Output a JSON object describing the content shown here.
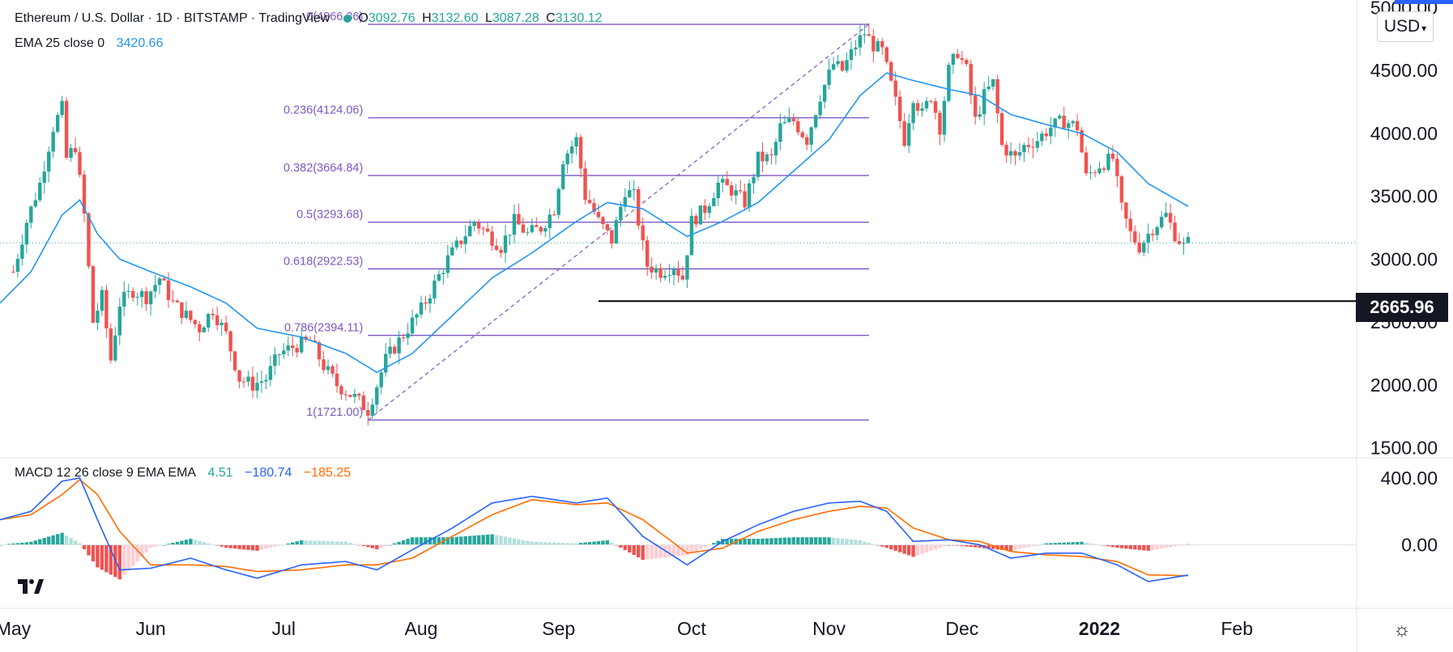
{
  "header": {
    "symbol_title": "Ethereum / U.S. Dollar · 1D · BITSTAMP · TradingView",
    "ohlc": {
      "o_label": "O",
      "o": "3092.76",
      "h_label": "H",
      "h": "3132.60",
      "l_label": "L",
      "l": "3087.28",
      "c_label": "C",
      "c": "3130.12"
    },
    "ema_label": "EMA 25 close 0",
    "ema_value": "3420.66",
    "macd_label": "MACD 12 26 close 9 EMA EMA",
    "macd_hist": "4.51",
    "macd_line": "−180.74",
    "macd_signal": "−185.25",
    "currency": "USD"
  },
  "colors": {
    "up": "#26a69a",
    "down": "#ef5350",
    "ema": "#2196f3",
    "fib": "#7e57c2",
    "macd_line": "#2962ff",
    "signal_line": "#ff6d00",
    "hist_up_strong": "#26a69a",
    "hist_up_weak": "#b2dfdb",
    "hist_down_strong": "#ef5350",
    "hist_down_weak": "#ffcdd2",
    "last_price_line": "#26a69a",
    "support": "#000000"
  },
  "horizontal_line_label": "2665.96",
  "chart_data": [
    {
      "type": "candlestick",
      "title": "Ethereum / U.S. Dollar · 1D · BITSTAMP",
      "ylim": [
        1420,
        5060
      ],
      "y_ticks": [
        "5000.00",
        "4500.00",
        "4000.00",
        "3500.00",
        "3000.00",
        "2500.00",
        "2000.00",
        "1500.00"
      ],
      "y_tick_values": [
        5000,
        4500,
        4000,
        3500,
        3000,
        2500,
        2000,
        1500
      ],
      "x_range": [
        "2021-04-28",
        "2022-02-28"
      ],
      "x_ticks": [
        {
          "date": "2021-05-01",
          "label": "May"
        },
        {
          "date": "2021-06-01",
          "label": "Jun"
        },
        {
          "date": "2021-07-01",
          "label": "Jul"
        },
        {
          "date": "2021-08-01",
          "label": "Aug"
        },
        {
          "date": "2021-09-01",
          "label": "Sep"
        },
        {
          "date": "2021-10-01",
          "label": "Oct"
        },
        {
          "date": "2021-11-01",
          "label": "Nov"
        },
        {
          "date": "2021-12-01",
          "label": "Dec"
        },
        {
          "date": "2022-01-01",
          "label": "2022"
        },
        {
          "date": "2022-02-01",
          "label": "Feb"
        }
      ],
      "price_path": [
        [
          "2021-05-01",
          2900
        ],
        [
          "2021-05-04",
          3300
        ],
        [
          "2021-05-07",
          3600
        ],
        [
          "2021-05-10",
          4050
        ],
        [
          "2021-05-12",
          4200
        ],
        [
          "2021-05-13",
          3800
        ],
        [
          "2021-05-15",
          3900
        ],
        [
          "2021-05-17",
          3350
        ],
        [
          "2021-05-19",
          2500
        ],
        [
          "2021-05-21",
          2700
        ],
        [
          "2021-05-23",
          2200
        ],
        [
          "2021-05-25",
          2650
        ],
        [
          "2021-05-28",
          2750
        ],
        [
          "2021-05-31",
          2700
        ],
        [
          "2021-06-03",
          2850
        ],
        [
          "2021-06-06",
          2650
        ],
        [
          "2021-06-09",
          2550
        ],
        [
          "2021-06-12",
          2450
        ],
        [
          "2021-06-15",
          2600
        ],
        [
          "2021-06-18",
          2400
        ],
        [
          "2021-06-21",
          2050
        ],
        [
          "2021-06-24",
          2000
        ],
        [
          "2021-06-27",
          2050
        ],
        [
          "2021-06-30",
          2250
        ],
        [
          "2021-07-03",
          2300
        ],
        [
          "2021-07-07",
          2350
        ],
        [
          "2021-07-10",
          2150
        ],
        [
          "2021-07-13",
          2000
        ],
        [
          "2021-07-17",
          1900
        ],
        [
          "2021-07-20",
          1800
        ],
        [
          "2021-07-22",
          2000
        ],
        [
          "2021-07-24",
          2200
        ],
        [
          "2021-07-27",
          2350
        ],
        [
          "2021-07-30",
          2500
        ],
        [
          "2021-08-01",
          2600
        ],
        [
          "2021-08-04",
          2800
        ],
        [
          "2021-08-07",
          3000
        ],
        [
          "2021-08-10",
          3150
        ],
        [
          "2021-08-13",
          3300
        ],
        [
          "2021-08-16",
          3200
        ],
        [
          "2021-08-19",
          3100
        ],
        [
          "2021-08-22",
          3300
        ],
        [
          "2021-08-25",
          3200
        ],
        [
          "2021-08-28",
          3250
        ],
        [
          "2021-08-31",
          3400
        ],
        [
          "2021-09-02",
          3800
        ],
        [
          "2021-09-05",
          3950
        ],
        [
          "2021-09-07",
          3500
        ],
        [
          "2021-09-08",
          3450
        ],
        [
          "2021-09-10",
          3300
        ],
        [
          "2021-09-13",
          3150
        ],
        [
          "2021-09-16",
          3550
        ],
        [
          "2021-09-18",
          3500
        ],
        [
          "2021-09-20",
          3100
        ],
        [
          "2021-09-21",
          2950
        ],
        [
          "2021-09-24",
          2900
        ],
        [
          "2021-09-27",
          2950
        ],
        [
          "2021-09-29",
          2850
        ],
        [
          "2021-10-01",
          3300
        ],
        [
          "2021-10-04",
          3400
        ],
        [
          "2021-10-07",
          3600
        ],
        [
          "2021-10-10",
          3550
        ],
        [
          "2021-10-13",
          3450
        ],
        [
          "2021-10-16",
          3800
        ],
        [
          "2021-10-19",
          3800
        ],
        [
          "2021-10-21",
          4050
        ],
        [
          "2021-10-24",
          4100
        ],
        [
          "2021-10-27",
          3950
        ],
        [
          "2021-10-30",
          4300
        ],
        [
          "2021-11-02",
          4550
        ],
        [
          "2021-11-04",
          4500
        ],
        [
          "2021-11-07",
          4700
        ],
        [
          "2021-11-09",
          4800
        ],
        [
          "2021-11-11",
          4700
        ],
        [
          "2021-11-13",
          4650
        ],
        [
          "2021-11-16",
          4250
        ],
        [
          "2021-11-18",
          3950
        ],
        [
          "2021-11-20",
          4300
        ],
        [
          "2021-11-22",
          4150
        ],
        [
          "2021-11-24",
          4300
        ],
        [
          "2021-11-26",
          4050
        ],
        [
          "2021-11-28",
          4500
        ],
        [
          "2021-11-30",
          4650
        ],
        [
          "2021-12-02",
          4500
        ],
        [
          "2021-12-04",
          4100
        ],
        [
          "2021-12-06",
          4300
        ],
        [
          "2021-12-08",
          4400
        ],
        [
          "2021-12-10",
          3900
        ],
        [
          "2021-12-13",
          3800
        ],
        [
          "2021-12-15",
          3900
        ],
        [
          "2021-12-18",
          3950
        ],
        [
          "2021-12-21",
          4050
        ],
        [
          "2021-12-24",
          4100
        ],
        [
          "2021-12-27",
          4050
        ],
        [
          "2021-12-29",
          3650
        ],
        [
          "2022-01-01",
          3750
        ],
        [
          "2022-01-04",
          3800
        ],
        [
          "2022-01-06",
          3400
        ],
        [
          "2022-01-08",
          3200
        ],
        [
          "2022-01-10",
          3100
        ],
        [
          "2022-01-13",
          3250
        ],
        [
          "2022-01-16",
          3350
        ],
        [
          "2022-01-18",
          3200
        ],
        [
          "2022-01-20",
          3100
        ],
        [
          "2022-01-21",
          3130
        ]
      ],
      "ema_path": [
        [
          "2021-04-28",
          2650
        ],
        [
          "2021-05-05",
          2900
        ],
        [
          "2021-05-12",
          3350
        ],
        [
          "2021-05-16",
          3470
        ],
        [
          "2021-05-20",
          3200
        ],
        [
          "2021-05-25",
          3000
        ],
        [
          "2021-06-01",
          2900
        ],
        [
          "2021-06-10",
          2780
        ],
        [
          "2021-06-18",
          2650
        ],
        [
          "2021-06-25",
          2450
        ],
        [
          "2021-07-05",
          2380
        ],
        [
          "2021-07-15",
          2250
        ],
        [
          "2021-07-22",
          2100
        ],
        [
          "2021-07-30",
          2250
        ],
        [
          "2021-08-08",
          2550
        ],
        [
          "2021-08-17",
          2850
        ],
        [
          "2021-08-26",
          3050
        ],
        [
          "2021-09-05",
          3300
        ],
        [
          "2021-09-12",
          3450
        ],
        [
          "2021-09-20",
          3400
        ],
        [
          "2021-09-30",
          3180
        ],
        [
          "2021-10-08",
          3300
        ],
        [
          "2021-10-16",
          3450
        ],
        [
          "2021-10-24",
          3700
        ],
        [
          "2021-11-01",
          3950
        ],
        [
          "2021-11-08",
          4300
        ],
        [
          "2021-11-14",
          4480
        ],
        [
          "2021-11-20",
          4420
        ],
        [
          "2021-11-28",
          4350
        ],
        [
          "2021-12-05",
          4300
        ],
        [
          "2021-12-12",
          4150
        ],
        [
          "2021-12-20",
          4070
        ],
        [
          "2021-12-28",
          4000
        ],
        [
          "2022-01-05",
          3850
        ],
        [
          "2022-01-12",
          3600
        ],
        [
          "2022-01-21",
          3420
        ]
      ],
      "fib_levels": [
        {
          "label": "0(4866.36)",
          "value": 4866.36
        },
        {
          "label": "0.236(4124.06)",
          "value": 4124.06
        },
        {
          "label": "0.382(3664.84)",
          "value": 3664.84
        },
        {
          "label": "0.5(3293.68)",
          "value": 3293.68
        },
        {
          "label": "0.618(2922.53)",
          "value": 2922.53
        },
        {
          "label": "0.786(2394.11)",
          "value": 2394.11
        },
        {
          "label": "1(1721.00)",
          "value": 1721.0
        }
      ],
      "fib_range": [
        "2021-07-20",
        "2021-11-10"
      ],
      "support_line": {
        "value": 2665.96,
        "from": "2021-09-10"
      },
      "last_price": 3130.12
    },
    {
      "type": "macd",
      "title": "MACD 12 26 close 9 EMA EMA",
      "ylim": [
        -380,
        520
      ],
      "y_ticks": [
        "400.00",
        "0.00"
      ],
      "y_tick_values": [
        400,
        0
      ],
      "macd_path": [
        [
          "2021-04-28",
          150
        ],
        [
          "2021-05-05",
          200
        ],
        [
          "2021-05-12",
          380
        ],
        [
          "2021-05-16",
          400
        ],
        [
          "2021-05-20",
          150
        ],
        [
          "2021-05-25",
          -150
        ],
        [
          "2021-06-01",
          -140
        ],
        [
          "2021-06-10",
          -80
        ],
        [
          "2021-06-18",
          -150
        ],
        [
          "2021-06-25",
          -200
        ],
        [
          "2021-07-05",
          -120
        ],
        [
          "2021-07-15",
          -100
        ],
        [
          "2021-07-22",
          -150
        ],
        [
          "2021-07-30",
          -30
        ],
        [
          "2021-08-08",
          100
        ],
        [
          "2021-08-17",
          250
        ],
        [
          "2021-08-26",
          290
        ],
        [
          "2021-09-05",
          250
        ],
        [
          "2021-09-12",
          280
        ],
        [
          "2021-09-20",
          50
        ],
        [
          "2021-09-30",
          -120
        ],
        [
          "2021-10-08",
          20
        ],
        [
          "2021-10-16",
          120
        ],
        [
          "2021-10-24",
          200
        ],
        [
          "2021-11-01",
          250
        ],
        [
          "2021-11-08",
          260
        ],
        [
          "2021-11-14",
          200
        ],
        [
          "2021-11-20",
          20
        ],
        [
          "2021-11-28",
          30
        ],
        [
          "2021-12-05",
          0
        ],
        [
          "2021-12-12",
          -80
        ],
        [
          "2021-12-20",
          -50
        ],
        [
          "2021-12-28",
          -50
        ],
        [
          "2022-01-05",
          -120
        ],
        [
          "2022-01-12",
          -220
        ],
        [
          "2022-01-21",
          -181
        ]
      ],
      "signal_path": [
        [
          "2021-04-28",
          150
        ],
        [
          "2021-05-05",
          180
        ],
        [
          "2021-05-12",
          300
        ],
        [
          "2021-05-16",
          390
        ],
        [
          "2021-05-20",
          300
        ],
        [
          "2021-05-25",
          80
        ],
        [
          "2021-06-01",
          -120
        ],
        [
          "2021-06-10",
          -120
        ],
        [
          "2021-06-18",
          -130
        ],
        [
          "2021-06-25",
          -160
        ],
        [
          "2021-07-05",
          -150
        ],
        [
          "2021-07-15",
          -120
        ],
        [
          "2021-07-22",
          -120
        ],
        [
          "2021-07-30",
          -80
        ],
        [
          "2021-08-08",
          50
        ],
        [
          "2021-08-17",
          180
        ],
        [
          "2021-08-26",
          270
        ],
        [
          "2021-09-05",
          240
        ],
        [
          "2021-09-12",
          250
        ],
        [
          "2021-09-20",
          150
        ],
        [
          "2021-09-30",
          -50
        ],
        [
          "2021-10-08",
          -20
        ],
        [
          "2021-10-16",
          80
        ],
        [
          "2021-10-24",
          150
        ],
        [
          "2021-11-01",
          200
        ],
        [
          "2021-11-08",
          230
        ],
        [
          "2021-11-14",
          220
        ],
        [
          "2021-11-20",
          100
        ],
        [
          "2021-11-28",
          30
        ],
        [
          "2021-12-05",
          20
        ],
        [
          "2021-12-12",
          -40
        ],
        [
          "2021-12-20",
          -60
        ],
        [
          "2021-12-28",
          -70
        ],
        [
          "2022-01-05",
          -100
        ],
        [
          "2022-01-12",
          -180
        ],
        [
          "2022-01-21",
          -185
        ]
      ],
      "histogram": "macd minus signal, daily"
    }
  ]
}
